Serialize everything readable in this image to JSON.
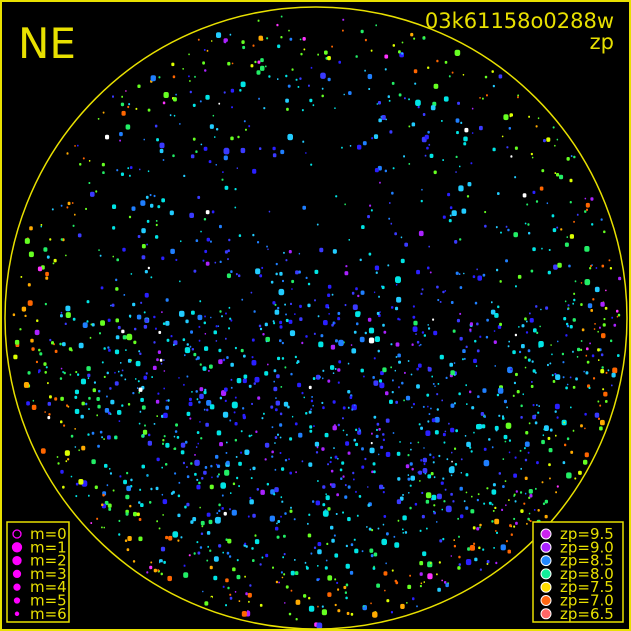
{
  "header": {
    "direction_label": "NE",
    "image_id": "03k61158o0288w",
    "mode_label": "zp"
  },
  "colors": {
    "frame": "#e8e000",
    "background": "#000000"
  },
  "chart_data": {
    "type": "scatter",
    "title": "",
    "projection": "all-sky polar (horizon circle)",
    "grid": false,
    "size_legend": {
      "placement": "bottom-left",
      "color": "#ff00ff",
      "entries": [
        {
          "label": "m=0",
          "hollow": true
        },
        {
          "label": "m=1"
        },
        {
          "label": "m=2"
        },
        {
          "label": "m=3"
        },
        {
          "label": "m=4"
        },
        {
          "label": "m=5"
        },
        {
          "label": "m=6"
        }
      ]
    },
    "color_legend": {
      "placement": "bottom-right",
      "entries": [
        {
          "label": "zp=9.5",
          "color": "#cc22ee"
        },
        {
          "label": "zp=9.0",
          "color": "#aa22ff"
        },
        {
          "label": "zp=8.5",
          "color": "#2288ff"
        },
        {
          "label": "zp=8.0",
          "color": "#11ee99"
        },
        {
          "label": "zp=7.5",
          "color": "#ffdd00"
        },
        {
          "label": "zp=7.0",
          "color": "#ff6611"
        },
        {
          "label": "zp=6.5",
          "color": "#ff6666"
        }
      ]
    },
    "point_palette": [
      "#2a1fff",
      "#3a3aff",
      "#1f7fff",
      "#22ccff",
      "#00e5e5",
      "#22ee66",
      "#66ff22",
      "#ddff00",
      "#ffaa00",
      "#ff6600",
      "#aa22ff",
      "#ff33ff",
      "#ffffff"
    ]
  }
}
